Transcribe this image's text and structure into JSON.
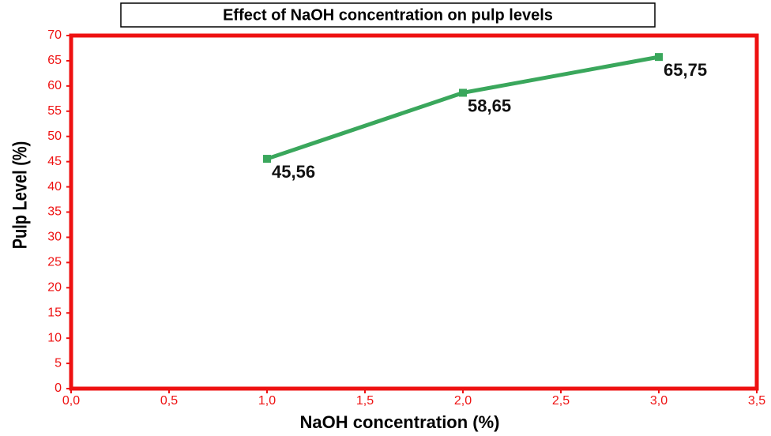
{
  "chart_data": {
    "type": "line",
    "title": "Effect of NaOH concentration on pulp levels",
    "x_label": "NaOH concentration (%)",
    "y_label": "Pulp Level (%)",
    "x": [
      1.0,
      2.0,
      3.0
    ],
    "series": [
      {
        "name": null,
        "color": "#3aa75c",
        "values": [
          45.56,
          58.65,
          65.75
        ],
        "value_labels": [
          "45,56",
          "58,65",
          "65,75"
        ]
      }
    ],
    "xlim": [
      0,
      3.5
    ],
    "xticks": [
      {
        "value": 0,
        "label": "0,0"
      },
      {
        "value": 0.5,
        "label": "0,5"
      },
      {
        "value": 1,
        "label": "1,0"
      },
      {
        "value": 1.5,
        "label": "1,5"
      },
      {
        "value": 2,
        "label": "2,0"
      },
      {
        "value": 2.5,
        "label": "2,5"
      },
      {
        "value": 3,
        "label": "3,0"
      },
      {
        "value": 3.5,
        "label": "3,5"
      }
    ],
    "ylim": [
      0,
      70
    ],
    "yticks": [
      0,
      5,
      10,
      15,
      20,
      25,
      30,
      35,
      40,
      45,
      50,
      55,
      60,
      65,
      70
    ],
    "grid": false,
    "axis_color": "#ee1111"
  }
}
